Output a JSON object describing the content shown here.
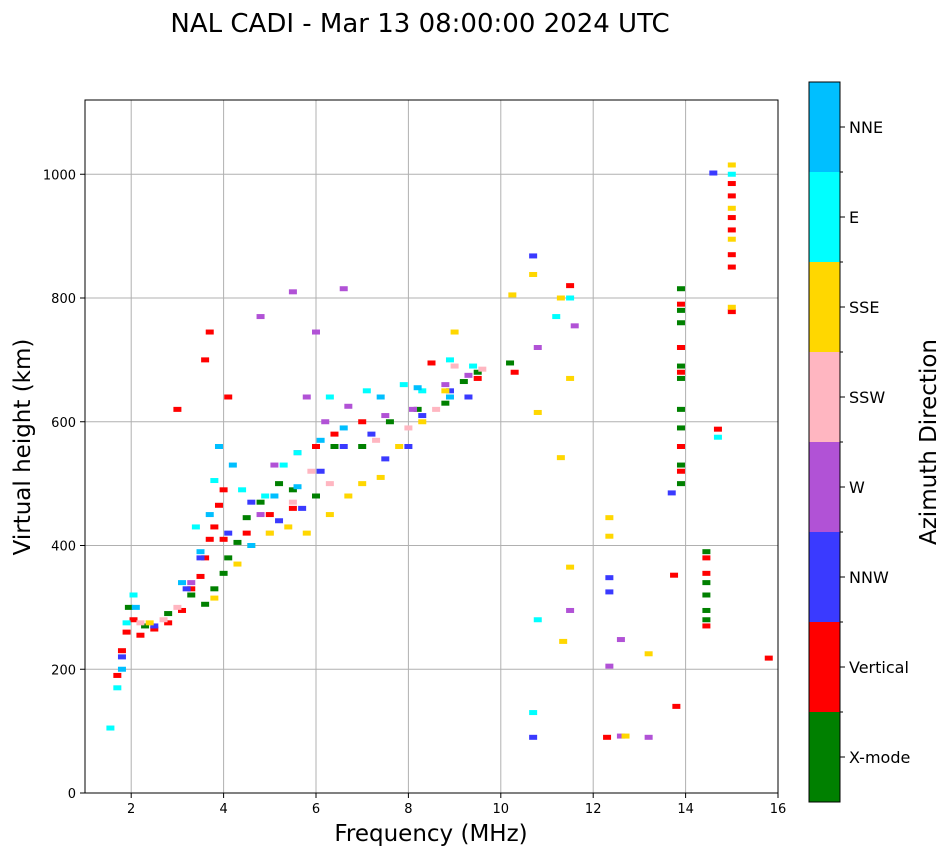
{
  "chart_data": {
    "type": "scatter",
    "title": "NAL CADI - Mar 13 08:00:00 2024 UTC",
    "xlabel": "Frequency (MHz)",
    "ylabel": "Virtual height (km)",
    "xlim": [
      1,
      16
    ],
    "ylim": [
      0,
      1120
    ],
    "xticks": [
      2,
      4,
      6,
      8,
      10,
      12,
      14,
      16
    ],
    "yticks": [
      0,
      200,
      400,
      600,
      800,
      1000
    ],
    "grid": true,
    "colorbar": {
      "label": "Azimuth Direction",
      "categories": [
        "X-mode",
        "Vertical",
        "NNW",
        "W",
        "SSW",
        "SSE",
        "E",
        "NNE"
      ],
      "colors": [
        "#008000",
        "#ff0000",
        "#3a3aff",
        "#b152d6",
        "#ffb6c1",
        "#ffd700",
        "#00ffff",
        "#00bfff"
      ]
    },
    "series": [
      {
        "name": "X-mode",
        "points": [
          [
            1.95,
            300
          ],
          [
            2.3,
            270
          ],
          [
            2.8,
            290
          ],
          [
            3.3,
            320
          ],
          [
            3.6,
            305
          ],
          [
            3.8,
            330
          ],
          [
            4.0,
            355
          ],
          [
            4.1,
            380
          ],
          [
            4.3,
            405
          ],
          [
            4.5,
            445
          ],
          [
            4.8,
            470
          ],
          [
            5.2,
            500
          ],
          [
            5.5,
            490
          ],
          [
            6.0,
            480
          ],
          [
            6.4,
            560
          ],
          [
            7.0,
            560
          ],
          [
            7.6,
            600
          ],
          [
            8.2,
            620
          ],
          [
            8.8,
            630
          ],
          [
            9.2,
            665
          ],
          [
            9.5,
            680
          ],
          [
            10.2,
            695
          ],
          [
            13.9,
            815
          ],
          [
            13.9,
            780
          ],
          [
            13.9,
            760
          ],
          [
            13.9,
            720
          ],
          [
            13.9,
            690
          ],
          [
            13.9,
            670
          ],
          [
            13.9,
            620
          ],
          [
            13.9,
            590
          ],
          [
            13.9,
            560
          ],
          [
            13.9,
            530
          ],
          [
            13.9,
            500
          ],
          [
            14.45,
            390
          ],
          [
            14.45,
            340
          ],
          [
            14.45,
            320
          ],
          [
            14.45,
            295
          ],
          [
            14.45,
            280
          ]
        ]
      },
      {
        "name": "Vertical",
        "points": [
          [
            1.7,
            190
          ],
          [
            1.8,
            230
          ],
          [
            1.9,
            260
          ],
          [
            2.05,
            280
          ],
          [
            2.2,
            255
          ],
          [
            2.5,
            265
          ],
          [
            2.8,
            275
          ],
          [
            3.1,
            295
          ],
          [
            3.3,
            330
          ],
          [
            3.5,
            350
          ],
          [
            3.6,
            380
          ],
          [
            3.7,
            410
          ],
          [
            3.8,
            430
          ],
          [
            3.9,
            465
          ],
          [
            4.0,
            490
          ],
          [
            4.0,
            410
          ],
          [
            3.6,
            700
          ],
          [
            3.7,
            745
          ],
          [
            4.1,
            640
          ],
          [
            3.0,
            620
          ],
          [
            4.5,
            420
          ],
          [
            5.0,
            450
          ],
          [
            5.5,
            460
          ],
          [
            6.0,
            560
          ],
          [
            6.4,
            580
          ],
          [
            7.0,
            600
          ],
          [
            8.5,
            695
          ],
          [
            9.5,
            670
          ],
          [
            10.3,
            680
          ],
          [
            11.5,
            820
          ],
          [
            12.3,
            90
          ],
          [
            13.75,
            352
          ],
          [
            13.8,
            140
          ],
          [
            13.9,
            790
          ],
          [
            13.9,
            720
          ],
          [
            13.9,
            680
          ],
          [
            13.9,
            560
          ],
          [
            13.9,
            520
          ],
          [
            14.45,
            380
          ],
          [
            14.45,
            355
          ],
          [
            14.45,
            270
          ],
          [
            14.7,
            588
          ],
          [
            15.0,
            985
          ],
          [
            15.0,
            965
          ],
          [
            15.0,
            930
          ],
          [
            15.0,
            910
          ],
          [
            15.0,
            870
          ],
          [
            15.0,
            850
          ],
          [
            15.0,
            778
          ],
          [
            15.8,
            218
          ]
        ]
      },
      {
        "name": "NNW",
        "points": [
          [
            1.8,
            220
          ],
          [
            2.5,
            270
          ],
          [
            3.2,
            330
          ],
          [
            3.5,
            380
          ],
          [
            4.1,
            420
          ],
          [
            4.6,
            470
          ],
          [
            5.2,
            440
          ],
          [
            5.7,
            460
          ],
          [
            6.1,
            520
          ],
          [
            6.6,
            560
          ],
          [
            7.2,
            580
          ],
          [
            7.5,
            540
          ],
          [
            8.0,
            560
          ],
          [
            8.3,
            610
          ],
          [
            8.9,
            650
          ],
          [
            9.3,
            640
          ],
          [
            10.7,
            868
          ],
          [
            10.7,
            90
          ],
          [
            12.35,
            348
          ],
          [
            12.35,
            325
          ],
          [
            13.7,
            485
          ],
          [
            14.6,
            1002
          ]
        ]
      },
      {
        "name": "W",
        "points": [
          [
            3.3,
            340
          ],
          [
            4.8,
            450
          ],
          [
            5.1,
            530
          ],
          [
            5.6,
            550
          ],
          [
            6.2,
            600
          ],
          [
            6.7,
            625
          ],
          [
            7.5,
            610
          ],
          [
            8.1,
            620
          ],
          [
            8.8,
            660
          ],
          [
            9.3,
            675
          ],
          [
            4.8,
            770
          ],
          [
            5.5,
            810
          ],
          [
            6.6,
            815
          ],
          [
            6.0,
            745
          ],
          [
            5.8,
            640
          ],
          [
            10.8,
            720
          ],
          [
            11.6,
            755
          ],
          [
            11.5,
            295
          ],
          [
            12.35,
            205
          ],
          [
            12.6,
            248
          ],
          [
            12.6,
            92
          ],
          [
            13.2,
            90
          ]
        ]
      },
      {
        "name": "SSW",
        "points": [
          [
            2.2,
            275
          ],
          [
            2.7,
            280
          ],
          [
            3.0,
            300
          ],
          [
            5.0,
            420
          ],
          [
            5.5,
            470
          ],
          [
            5.9,
            520
          ],
          [
            6.3,
            500
          ],
          [
            7.3,
            570
          ],
          [
            8.0,
            590
          ],
          [
            8.6,
            620
          ],
          [
            9.0,
            690
          ],
          [
            9.6,
            685
          ]
        ]
      },
      {
        "name": "SSE",
        "points": [
          [
            2.4,
            275
          ],
          [
            3.8,
            315
          ],
          [
            4.3,
            370
          ],
          [
            4.6,
            400
          ],
          [
            5.0,
            420
          ],
          [
            5.4,
            430
          ],
          [
            5.8,
            420
          ],
          [
            6.3,
            450
          ],
          [
            6.7,
            480
          ],
          [
            7.0,
            500
          ],
          [
            7.4,
            510
          ],
          [
            7.8,
            560
          ],
          [
            8.3,
            600
          ],
          [
            8.8,
            650
          ],
          [
            9.0,
            745
          ],
          [
            10.25,
            805
          ],
          [
            10.7,
            838
          ],
          [
            10.8,
            615
          ],
          [
            11.3,
            542
          ],
          [
            11.3,
            800
          ],
          [
            11.5,
            670
          ],
          [
            11.5,
            365
          ],
          [
            11.35,
            245
          ],
          [
            12.35,
            445
          ],
          [
            12.35,
            415
          ],
          [
            12.7,
            92
          ],
          [
            13.2,
            225
          ],
          [
            15.0,
            1015
          ],
          [
            15.0,
            945
          ],
          [
            15.0,
            895
          ],
          [
            15.0,
            785
          ]
        ]
      },
      {
        "name": "E",
        "points": [
          [
            1.55,
            105
          ],
          [
            1.7,
            170
          ],
          [
            1.9,
            275
          ],
          [
            2.05,
            320
          ],
          [
            3.4,
            430
          ],
          [
            3.8,
            505
          ],
          [
            4.4,
            490
          ],
          [
            4.9,
            480
          ],
          [
            5.3,
            530
          ],
          [
            5.6,
            550
          ],
          [
            6.3,
            640
          ],
          [
            7.1,
            650
          ],
          [
            7.9,
            660
          ],
          [
            8.3,
            650
          ],
          [
            8.9,
            700
          ],
          [
            9.4,
            690
          ],
          [
            10.7,
            130
          ],
          [
            10.8,
            280
          ],
          [
            11.2,
            770
          ],
          [
            11.5,
            800
          ],
          [
            14.7,
            575
          ],
          [
            15.0,
            1000
          ]
        ]
      },
      {
        "name": "NNE",
        "points": [
          [
            1.8,
            200
          ],
          [
            2.1,
            300
          ],
          [
            3.1,
            340
          ],
          [
            3.5,
            390
          ],
          [
            3.7,
            450
          ],
          [
            3.9,
            560
          ],
          [
            4.2,
            530
          ],
          [
            4.6,
            400
          ],
          [
            5.1,
            480
          ],
          [
            5.6,
            495
          ],
          [
            6.1,
            570
          ],
          [
            6.6,
            590
          ],
          [
            7.4,
            640
          ],
          [
            8.2,
            655
          ],
          [
            8.9,
            640
          ]
        ]
      }
    ]
  }
}
